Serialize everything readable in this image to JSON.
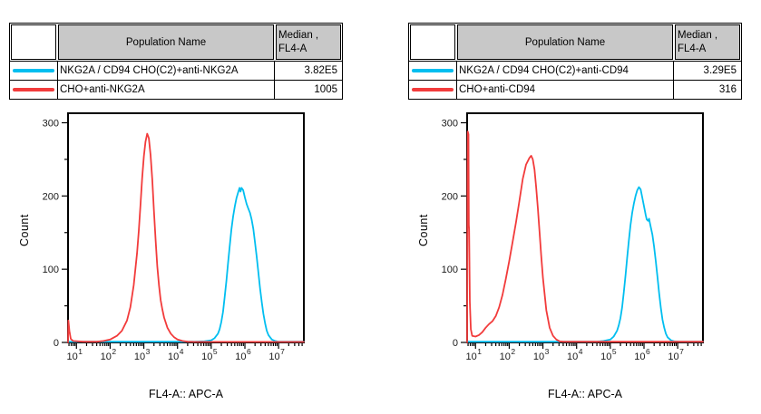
{
  "colors": {
    "series_cyan": "#00BEF0",
    "series_red": "#F23B3B",
    "table_header_bg": "#C8C8C8",
    "axis": "#000000",
    "background": "#FFFFFF"
  },
  "tables": [
    {
      "header": {
        "population": "Population Name",
        "median_line1": "Median ,",
        "median_line2": "FL4-A"
      },
      "rows": [
        {
          "color": "#00BEF0",
          "population": "NKG2A / CD94 CHO(C2)+anti-NKG2A",
          "median": "3.82E5"
        },
        {
          "color": "#F23B3B",
          "population": "CHO+anti-NKG2A",
          "median": "1005"
        }
      ]
    },
    {
      "header": {
        "population": "Population Name",
        "median_line1": "Median ,",
        "median_line2": "FL4-A"
      },
      "rows": [
        {
          "color": "#00BEF0",
          "population": "NKG2A / CD94 CHO(C2)+anti-CD94",
          "median": "3.29E5"
        },
        {
          "color": "#F23B3B",
          "population": "CHO+anti-CD94",
          "median": "316"
        }
      ]
    }
  ],
  "chart_data": [
    {
      "type": "line",
      "subtype": "flow-cytometry-histogram-overlay",
      "title": "",
      "xlabel": "FL4-A:: APC-A",
      "ylabel": "Count",
      "x_scale": "log10",
      "xlim_log": [
        0.75,
        7.75
      ],
      "ylim": [
        0,
        313
      ],
      "x_tick_exponents": [
        1,
        2,
        3,
        4,
        5,
        6,
        7
      ],
      "y_ticks": [
        0,
        100,
        200,
        300
      ],
      "y_minor_ticks": [
        50,
        150,
        250
      ],
      "grid": false,
      "legend_position": "table-above",
      "series": [
        {
          "name": "NKG2A / CD94 CHO(C2)+anti-NKG2A",
          "color": "#00BEF0",
          "median_fl4a": "3.82E5",
          "points": [
            [
              0.75,
              1
            ],
            [
              4.5,
              1
            ],
            [
              4.8,
              1.5
            ],
            [
              5.0,
              3
            ],
            [
              5.1,
              6
            ],
            [
              5.2,
              12
            ],
            [
              5.25,
              18
            ],
            [
              5.3,
              28
            ],
            [
              5.35,
              42
            ],
            [
              5.4,
              62
            ],
            [
              5.45,
              84
            ],
            [
              5.5,
              108
            ],
            [
              5.55,
              132
            ],
            [
              5.6,
              154
            ],
            [
              5.65,
              172
            ],
            [
              5.7,
              186
            ],
            [
              5.75,
              197
            ],
            [
              5.8,
              205
            ],
            [
              5.84,
              211
            ],
            [
              5.87,
              206
            ],
            [
              5.9,
              211
            ],
            [
              5.95,
              208
            ],
            [
              6.0,
              198
            ],
            [
              6.05,
              189
            ],
            [
              6.1,
              183
            ],
            [
              6.15,
              177
            ],
            [
              6.2,
              168
            ],
            [
              6.25,
              155
            ],
            [
              6.3,
              137
            ],
            [
              6.35,
              117
            ],
            [
              6.4,
              95
            ],
            [
              6.45,
              74
            ],
            [
              6.5,
              55
            ],
            [
              6.55,
              39
            ],
            [
              6.6,
              26
            ],
            [
              6.65,
              16
            ],
            [
              6.7,
              10
            ],
            [
              6.8,
              4
            ],
            [
              6.9,
              2
            ],
            [
              7.0,
              1
            ],
            [
              7.75,
              1
            ]
          ]
        },
        {
          "name": "CHO+anti-NKG2A",
          "color": "#F23B3B",
          "median_fl4a": "1005",
          "points": [
            [
              0.75,
              0
            ],
            [
              0.76,
              30
            ],
            [
              0.79,
              16
            ],
            [
              0.83,
              5
            ],
            [
              0.9,
              2
            ],
            [
              1.2,
              1
            ],
            [
              1.6,
              1
            ],
            [
              1.8,
              2
            ],
            [
              2.0,
              4
            ],
            [
              2.2,
              9
            ],
            [
              2.35,
              16
            ],
            [
              2.5,
              30
            ],
            [
              2.6,
              48
            ],
            [
              2.7,
              78
            ],
            [
              2.8,
              122
            ],
            [
              2.85,
              152
            ],
            [
              2.9,
              188
            ],
            [
              2.95,
              224
            ],
            [
              3.0,
              254
            ],
            [
              3.05,
              274
            ],
            [
              3.1,
              285
            ],
            [
              3.15,
              279
            ],
            [
              3.2,
              256
            ],
            [
              3.25,
              222
            ],
            [
              3.3,
              180
            ],
            [
              3.35,
              139
            ],
            [
              3.4,
              104
            ],
            [
              3.45,
              78
            ],
            [
              3.5,
              58
            ],
            [
              3.55,
              45
            ],
            [
              3.6,
              34
            ],
            [
              3.7,
              20
            ],
            [
              3.8,
              12
            ],
            [
              3.9,
              7
            ],
            [
              4.0,
              4
            ],
            [
              4.15,
              2
            ],
            [
              4.3,
              1
            ],
            [
              4.5,
              0.8
            ],
            [
              7.75,
              0.8
            ]
          ]
        }
      ]
    },
    {
      "type": "line",
      "subtype": "flow-cytometry-histogram-overlay",
      "title": "",
      "xlabel": "FL4-A:: APC-A",
      "ylabel": "Count",
      "x_scale": "log10",
      "xlim_log": [
        0.75,
        7.75
      ],
      "ylim": [
        0,
        313
      ],
      "x_tick_exponents": [
        1,
        2,
        3,
        4,
        5,
        6,
        7
      ],
      "y_ticks": [
        0,
        100,
        200,
        300
      ],
      "y_minor_ticks": [
        50,
        150,
        250
      ],
      "grid": false,
      "legend_position": "table-above",
      "series": [
        {
          "name": "NKG2A / CD94 CHO(C2)+anti-CD94",
          "color": "#00BEF0",
          "median_fl4a": "3.29E5",
          "points": [
            [
              0.75,
              1
            ],
            [
              4.6,
              1
            ],
            [
              4.8,
              2
            ],
            [
              5.0,
              4
            ],
            [
              5.1,
              8
            ],
            [
              5.2,
              16
            ],
            [
              5.25,
              23
            ],
            [
              5.3,
              33
            ],
            [
              5.35,
              48
            ],
            [
              5.4,
              68
            ],
            [
              5.45,
              91
            ],
            [
              5.5,
              115
            ],
            [
              5.55,
              139
            ],
            [
              5.6,
              160
            ],
            [
              5.65,
              177
            ],
            [
              5.7,
              190
            ],
            [
              5.75,
              200
            ],
            [
              5.8,
              208
            ],
            [
              5.85,
              212
            ],
            [
              5.9,
              209
            ],
            [
              5.95,
              198
            ],
            [
              6.0,
              186
            ],
            [
              6.05,
              174
            ],
            [
              6.08,
              168
            ],
            [
              6.12,
              166
            ],
            [
              6.15,
              169
            ],
            [
              6.18,
              162
            ],
            [
              6.25,
              147
            ],
            [
              6.3,
              131
            ],
            [
              6.35,
              111
            ],
            [
              6.4,
              89
            ],
            [
              6.45,
              67
            ],
            [
              6.5,
              47
            ],
            [
              6.55,
              31
            ],
            [
              6.6,
              20
            ],
            [
              6.65,
              12
            ],
            [
              6.7,
              7
            ],
            [
              6.8,
              3
            ],
            [
              6.9,
              1.5
            ],
            [
              7.05,
              1
            ],
            [
              7.75,
              1
            ]
          ]
        },
        {
          "name": "CHO+anti-CD94",
          "color": "#F23B3B",
          "median_fl4a": "316",
          "points": [
            [
              0.75,
              0
            ],
            [
              0.76,
              220
            ],
            [
              0.77,
              288
            ],
            [
              0.79,
              284
            ],
            [
              0.8,
              160
            ],
            [
              0.81,
              155
            ],
            [
              0.83,
              55
            ],
            [
              0.86,
              18
            ],
            [
              0.9,
              9
            ],
            [
              1.0,
              8
            ],
            [
              1.1,
              10
            ],
            [
              1.2,
              14
            ],
            [
              1.3,
              20
            ],
            [
              1.4,
              25
            ],
            [
              1.5,
              29
            ],
            [
              1.6,
              36
            ],
            [
              1.7,
              48
            ],
            [
              1.8,
              65
            ],
            [
              1.9,
              87
            ],
            [
              2.0,
              111
            ],
            [
              2.1,
              137
            ],
            [
              2.2,
              164
            ],
            [
              2.3,
              193
            ],
            [
              2.4,
              223
            ],
            [
              2.5,
              243
            ],
            [
              2.6,
              252
            ],
            [
              2.65,
              255
            ],
            [
              2.7,
              250
            ],
            [
              2.75,
              236
            ],
            [
              2.8,
              212
            ],
            [
              2.85,
              183
            ],
            [
              2.9,
              150
            ],
            [
              2.95,
              118
            ],
            [
              3.0,
              88
            ],
            [
              3.1,
              44
            ],
            [
              3.2,
              20
            ],
            [
              3.3,
              9
            ],
            [
              3.4,
              4
            ],
            [
              3.5,
              1.5
            ],
            [
              3.6,
              1
            ],
            [
              7.75,
              1
            ]
          ]
        }
      ]
    }
  ]
}
